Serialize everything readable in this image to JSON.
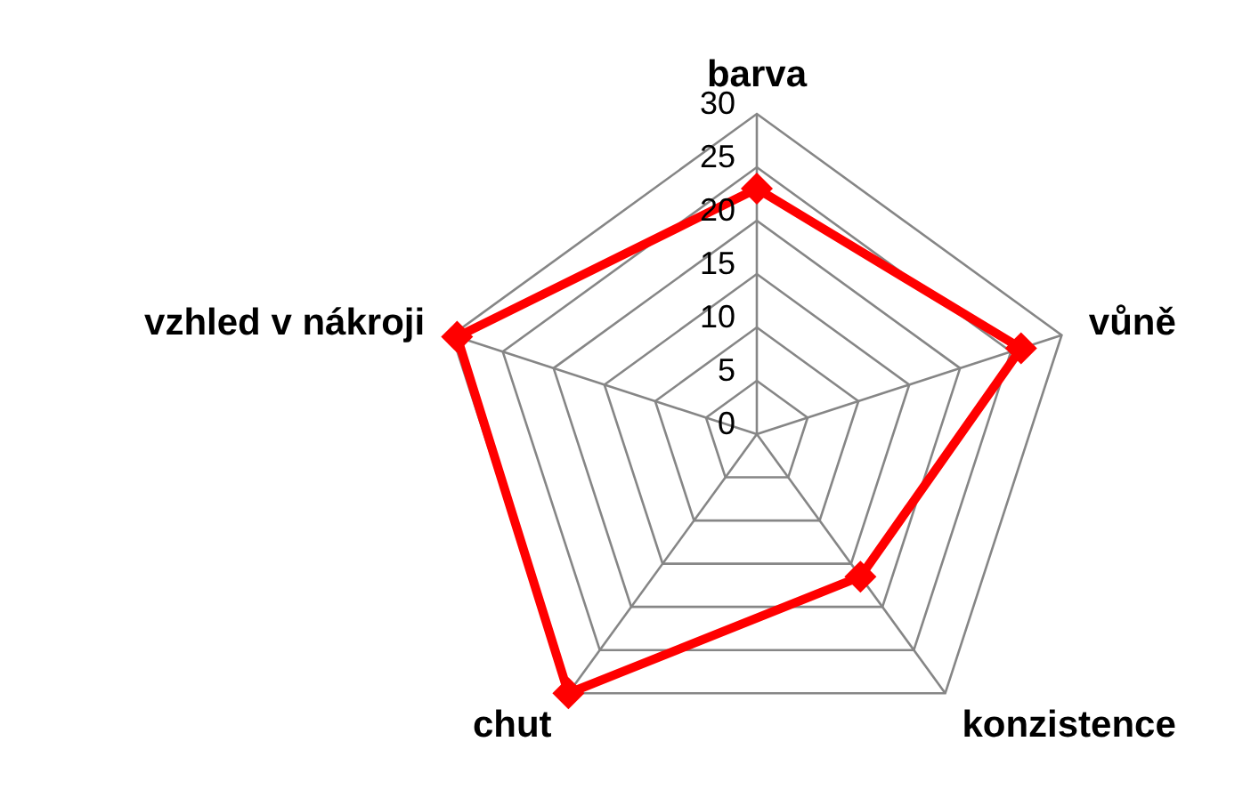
{
  "chart_data": {
    "type": "radar",
    "categories": [
      "barva",
      "vůně",
      "konzistence",
      "chut",
      "vzhled v nákroji"
    ],
    "series": [
      {
        "color": "#ff0000",
        "values": [
          23,
          26,
          16.5,
          30,
          29.5
        ]
      }
    ],
    "ylim": [
      0,
      30
    ],
    "yticks": [
      0,
      5,
      10,
      15,
      20,
      25,
      30
    ],
    "grid": true,
    "marker": "diamond"
  }
}
